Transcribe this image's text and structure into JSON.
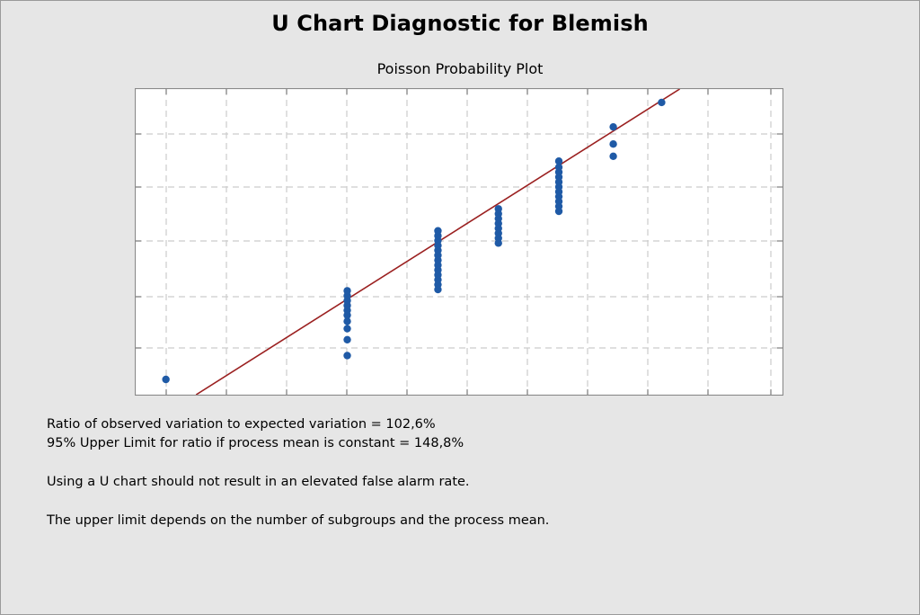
{
  "title": "U Chart Diagnostic for Blemish",
  "chart_data": {
    "type": "scatter",
    "title": "Poisson Probability Plot",
    "xlabel": "",
    "ylabel": "",
    "xticklabels_visible": false,
    "yticklabels_visible": false,
    "grid": true,
    "grid_style": "dashed",
    "xlim": [
      0,
      10.7
    ],
    "ylim": [
      0,
      5
    ],
    "colors": {
      "points": "#1f5aa6",
      "fit_line": "#9b2020",
      "plot_background": "#ffffff",
      "grid": "#cccccc"
    },
    "fit_line": {
      "points": [
        [
          1.0,
          0.0
        ],
        [
          9.0,
          5.0
        ]
      ]
    },
    "series": [
      {
        "points": [
          [
            0.5,
            0.25
          ],
          [
            3.5,
            0.64
          ],
          [
            3.5,
            0.9
          ],
          [
            3.5,
            1.08
          ],
          [
            3.5,
            1.2
          ],
          [
            3.5,
            1.3
          ],
          [
            3.5,
            1.38
          ],
          [
            3.5,
            1.46
          ],
          [
            3.5,
            1.54
          ],
          [
            3.5,
            1.62
          ],
          [
            3.5,
            1.7
          ],
          [
            5.0,
            1.72
          ],
          [
            5.0,
            1.8
          ],
          [
            5.0,
            1.88
          ],
          [
            5.0,
            1.96
          ],
          [
            5.0,
            2.04
          ],
          [
            5.0,
            2.12
          ],
          [
            5.0,
            2.2
          ],
          [
            5.0,
            2.28
          ],
          [
            5.0,
            2.36
          ],
          [
            5.0,
            2.44
          ],
          [
            5.0,
            2.52
          ],
          [
            5.0,
            2.6
          ],
          [
            5.0,
            2.68
          ],
          [
            6.0,
            2.48
          ],
          [
            6.0,
            2.56
          ],
          [
            6.0,
            2.64
          ],
          [
            6.0,
            2.72
          ],
          [
            6.0,
            2.8
          ],
          [
            6.0,
            2.88
          ],
          [
            6.0,
            2.96
          ],
          [
            6.0,
            3.04
          ],
          [
            7.0,
            3.0
          ],
          [
            7.0,
            3.08
          ],
          [
            7.0,
            3.16
          ],
          [
            7.0,
            3.24
          ],
          [
            7.0,
            3.32
          ],
          [
            7.0,
            3.4
          ],
          [
            7.0,
            3.48
          ],
          [
            7.0,
            3.56
          ],
          [
            7.0,
            3.64
          ],
          [
            7.0,
            3.72
          ],
          [
            7.0,
            3.82
          ],
          [
            7.9,
            3.9
          ],
          [
            7.9,
            4.1
          ],
          [
            7.9,
            4.38
          ],
          [
            8.7,
            4.78
          ]
        ]
      }
    ]
  },
  "notes": {
    "line1": "Ratio of observed variation to expected variation = 102,6%",
    "line2": "95% Upper Limit for ratio if process mean is constant = 148,8%",
    "line3": "Using a U chart should not result in an elevated false alarm rate.",
    "line4": "The upper limit depends on the number of subgroups and the process mean."
  }
}
